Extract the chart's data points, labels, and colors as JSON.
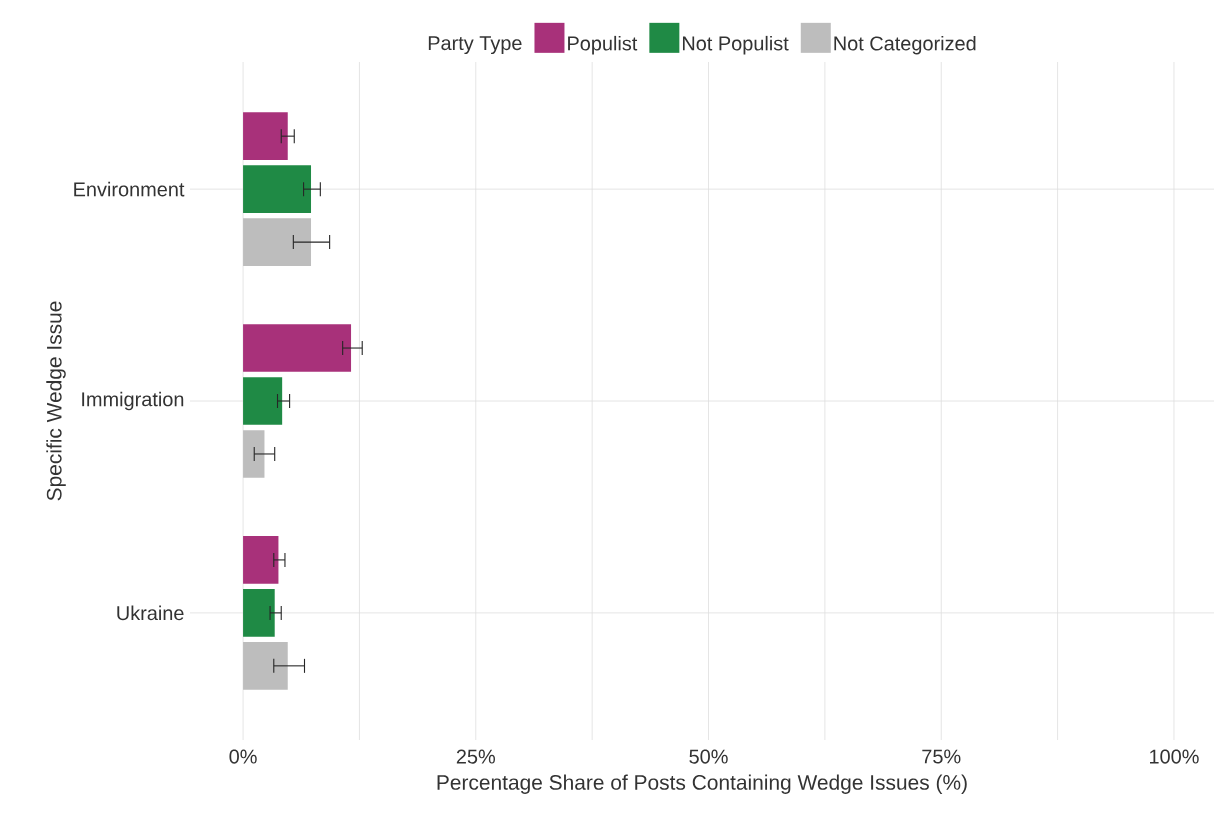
{
  "chart_data": {
    "type": "bar",
    "orientation": "horizontal",
    "categories": [
      "Environment",
      "Immigration",
      "Ukraine"
    ],
    "series": [
      {
        "name": "Populist",
        "color": "#a8317a",
        "values": [
          4.8,
          11.6,
          3.8
        ],
        "errors": [
          [
            4.1,
            5.5
          ],
          [
            10.7,
            12.8
          ],
          [
            3.3,
            4.5
          ]
        ]
      },
      {
        "name": "Not Populist",
        "color": "#1f8a45",
        "values": [
          7.3,
          4.2,
          3.4
        ],
        "errors": [
          [
            6.5,
            8.3
          ],
          [
            3.7,
            5.0
          ],
          [
            2.9,
            4.1
          ]
        ]
      },
      {
        "name": "Not Categorized",
        "color": "#bdbdbd",
        "values": [
          7.3,
          2.3,
          4.8
        ],
        "errors": [
          [
            5.4,
            9.3
          ],
          [
            1.2,
            3.4
          ],
          [
            3.3,
            6.6
          ]
        ]
      }
    ],
    "xlim": [
      -5.7,
      104.3
    ],
    "xticks": [
      {
        "value": 0,
        "label": "0%"
      },
      {
        "value": 12.5,
        "label": null
      },
      {
        "value": 25,
        "label": "25%"
      },
      {
        "value": 37.5,
        "label": null
      },
      {
        "value": 50,
        "label": "50%"
      },
      {
        "value": 62.5,
        "label": null
      },
      {
        "value": 75,
        "label": "75%"
      },
      {
        "value": 87.5,
        "label": null
      },
      {
        "value": 100,
        "label": "100%"
      }
    ],
    "xlabel": "Percentage Share of Posts Containing Wedge Issues (%)",
    "ylabel": "Specific Wedge Issue",
    "legend_title": "Party Type",
    "legend": "top",
    "grid": true
  }
}
